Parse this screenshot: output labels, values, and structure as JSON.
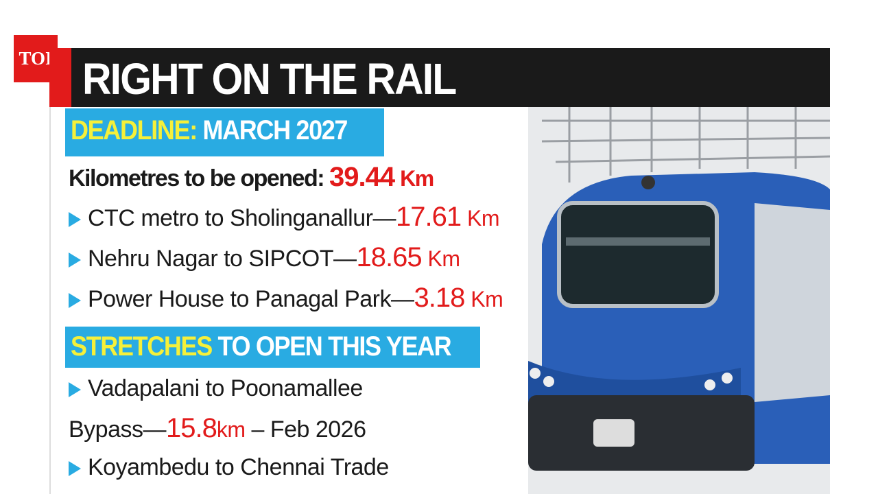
{
  "logo": "TOI",
  "header": {
    "title": "RIGHT ON THE RAIL"
  },
  "deadline": {
    "label": "DEADLINE:",
    "value": "MARCH 2027"
  },
  "total": {
    "label": "Kilometres to be opened:",
    "km": 39.44,
    "unit": "Km"
  },
  "routes": [
    {
      "name": "CTC metro to Sholinganallur—",
      "km": 17.61,
      "unit": "Km"
    },
    {
      "name": "Nehru Nagar to SIPCOT—",
      "km": 18.65,
      "unit": "Km"
    },
    {
      "name": "Power House to Panagal Park—",
      "km": 3.18,
      "unit": "Km"
    }
  ],
  "stretches": {
    "label": "STRETCHES",
    "rest": "TO OPEN THIS YEAR",
    "items": [
      {
        "line1": "Vadapalani to Poonamallee",
        "line2": "Bypass—",
        "km": 15.8,
        "unit": "km",
        "date": "– Feb 2026"
      },
      {
        "line1": "Koyambedu to Chennai Trade"
      }
    ]
  }
}
